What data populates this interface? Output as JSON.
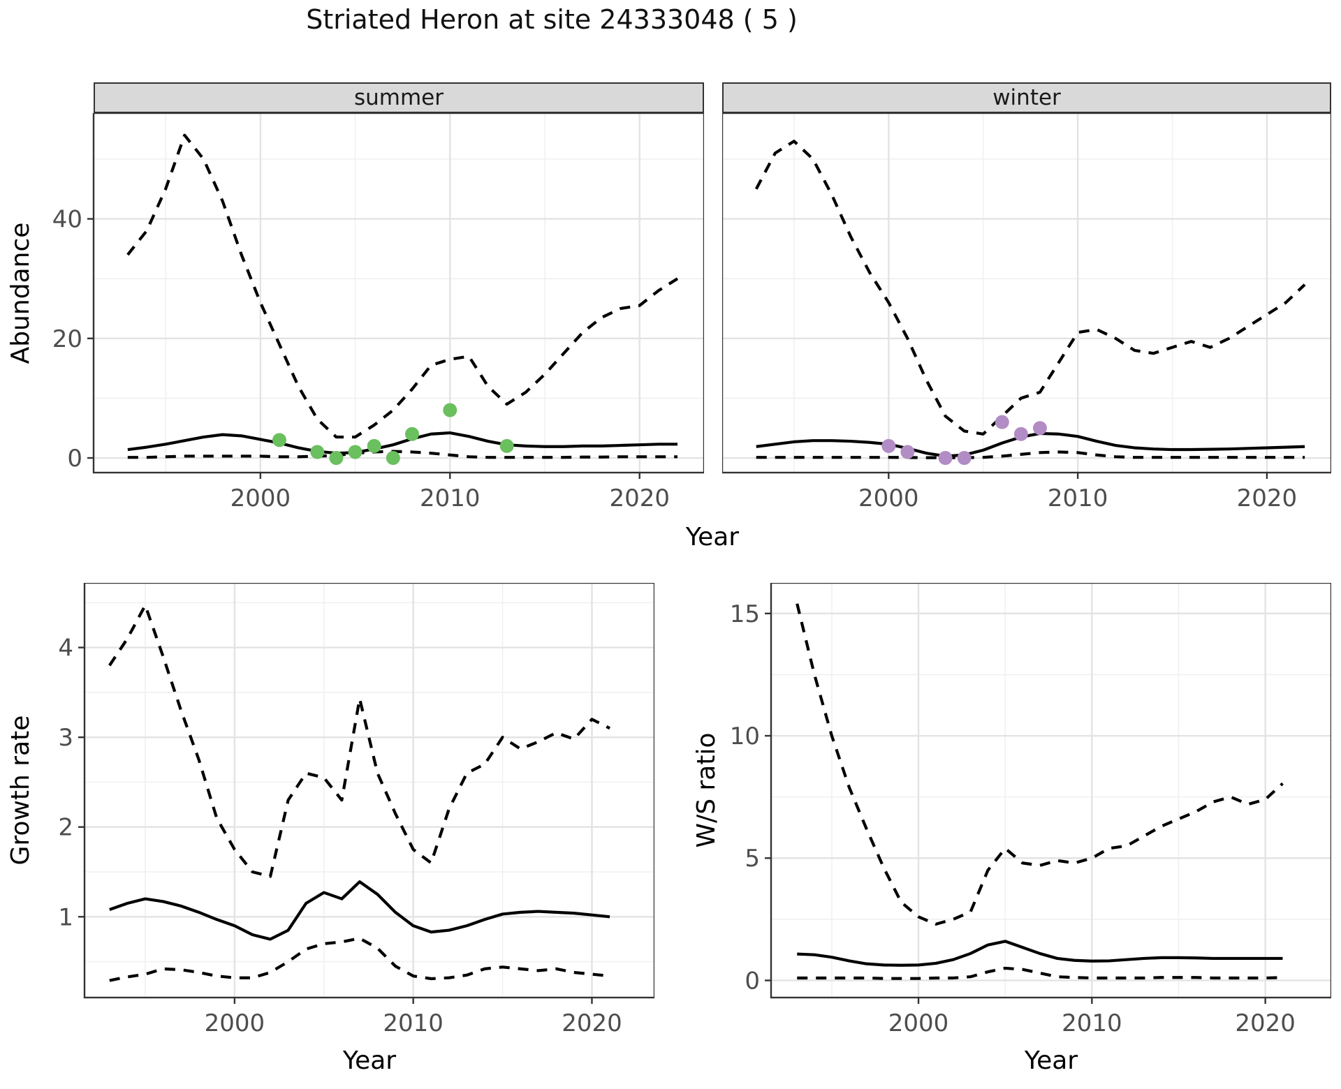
{
  "title": "Striated Heron at site 24333048 ( 5 )",
  "facets": [
    "summer",
    "winter"
  ],
  "axis_titles": {
    "x": "Year",
    "y_abundance": "Abundance",
    "y_growth": "Growth rate",
    "y_ws": "W/S ratio"
  },
  "colors": {
    "summer_points": "#6abf5f",
    "winter_points": "#b28cc4",
    "line": "#000000",
    "grid_major": "#e3e3e3",
    "grid_minor": "#f0f0f0",
    "strip_bg": "#d9d9d9",
    "panel_border": "#333333",
    "tick_text": "#4d4d4d"
  },
  "chart_data": [
    {
      "name": "abundance-summer",
      "type": "line",
      "facet": "summer",
      "xlabel": "Year",
      "ylabel": "Abundance",
      "xlim": [
        1991.2,
        2023.4
      ],
      "ylim": [
        -2.45,
        57.7
      ],
      "xticks": [
        2000,
        2010,
        2020
      ],
      "xminor": [
        1995,
        2005,
        2015
      ],
      "yticks": [
        0,
        20,
        40
      ],
      "yminor": [
        10,
        30,
        50
      ],
      "x": [
        1993,
        1994,
        1995,
        1996,
        1997,
        1998,
        1999,
        2000,
        2001,
        2002,
        2003,
        2004,
        2005,
        2006,
        2007,
        2008,
        2009,
        2010,
        2011,
        2012,
        2013,
        2014,
        2015,
        2016,
        2017,
        2018,
        2019,
        2020,
        2021,
        2022
      ],
      "series": [
        {
          "name": "upper_ci",
          "style": "dashed",
          "values": [
            34,
            38,
            45,
            54,
            50,
            43,
            34,
            26,
            19,
            12,
            6.5,
            3.5,
            3.5,
            5.5,
            8,
            11.5,
            15.5,
            16.5,
            17,
            12,
            9,
            11,
            14,
            17.5,
            21,
            23.5,
            25,
            25.5,
            28,
            30
          ]
        },
        {
          "name": "lower_ci",
          "style": "dashed",
          "values": [
            0.1,
            0.1,
            0.2,
            0.3,
            0.3,
            0.3,
            0.3,
            0.3,
            0.2,
            0.2,
            0.3,
            0.4,
            0.8,
            1.0,
            1.1,
            1.0,
            0.8,
            0.5,
            0.2,
            0.1,
            0.1,
            0.1,
            0.1,
            0.1,
            0.15,
            0.15,
            0.2,
            0.2,
            0.2,
            0.2
          ]
        },
        {
          "name": "fit",
          "style": "solid",
          "values": [
            1.4,
            1.8,
            2.3,
            2.9,
            3.5,
            3.9,
            3.7,
            3.1,
            2.5,
            1.7,
            1.1,
            0.8,
            0.9,
            1.5,
            2.2,
            3.2,
            4.0,
            4.2,
            3.6,
            2.8,
            2.2,
            2.0,
            1.9,
            1.9,
            2.0,
            2.0,
            2.1,
            2.2,
            2.3,
            2.3
          ]
        }
      ],
      "points": {
        "name": "observed-counts",
        "color_key": "summer_points",
        "data": [
          [
            2001,
            3
          ],
          [
            2003,
            1
          ],
          [
            2004,
            0
          ],
          [
            2005,
            1
          ],
          [
            2006,
            2
          ],
          [
            2007,
            0
          ],
          [
            2008,
            4
          ],
          [
            2010,
            8
          ],
          [
            2013,
            2
          ]
        ]
      }
    },
    {
      "name": "abundance-winter",
      "type": "line",
      "facet": "winter",
      "xlabel": "Year",
      "ylabel": "Abundance",
      "xlim": [
        1991.2,
        2023.4
      ],
      "ylim": [
        -2.45,
        57.7
      ],
      "xticks": [
        2000,
        2010,
        2020
      ],
      "xminor": [
        1995,
        2005,
        2015
      ],
      "yticks": [
        0,
        20,
        40
      ],
      "yminor": [
        10,
        30,
        50
      ],
      "x": [
        1993,
        1994,
        1995,
        1996,
        1997,
        1998,
        1999,
        2000,
        2001,
        2002,
        2003,
        2004,
        2005,
        2006,
        2007,
        2008,
        2009,
        2010,
        2011,
        2012,
        2013,
        2014,
        2015,
        2016,
        2017,
        2018,
        2019,
        2020,
        2021,
        2022
      ],
      "series": [
        {
          "name": "upper_ci",
          "style": "dashed",
          "values": [
            45,
            51,
            53,
            50,
            44,
            37,
            31,
            26,
            20,
            13,
            7,
            4.5,
            4,
            7,
            10,
            11,
            16,
            21,
            21.5,
            20,
            18,
            17.5,
            18.5,
            19.5,
            18.5,
            20,
            22,
            24,
            26,
            29
          ]
        },
        {
          "name": "lower_ci",
          "style": "dashed",
          "values": [
            0.1,
            0.1,
            0.1,
            0.1,
            0.1,
            0.1,
            0.1,
            0.1,
            0.08,
            0.05,
            0.05,
            0.05,
            0.1,
            0.3,
            0.6,
            0.9,
            1.0,
            0.9,
            0.5,
            0.2,
            0.1,
            0.1,
            0.1,
            0.1,
            0.1,
            0.1,
            0.1,
            0.1,
            0.1,
            0.1
          ]
        },
        {
          "name": "fit",
          "style": "solid",
          "values": [
            1.9,
            2.3,
            2.7,
            2.9,
            2.9,
            2.8,
            2.6,
            2.3,
            1.6,
            0.8,
            0.3,
            0.5,
            1.3,
            2.5,
            3.5,
            4.1,
            4.0,
            3.6,
            2.8,
            2.1,
            1.7,
            1.5,
            1.4,
            1.4,
            1.45,
            1.5,
            1.6,
            1.7,
            1.8,
            1.9
          ]
        }
      ],
      "points": {
        "name": "observed-counts",
        "color_key": "winter_points",
        "data": [
          [
            2000,
            2
          ],
          [
            2001,
            1
          ],
          [
            2003,
            0
          ],
          [
            2004,
            0
          ],
          [
            2006,
            6
          ],
          [
            2007,
            4
          ],
          [
            2008,
            5
          ]
        ]
      }
    },
    {
      "name": "growth-rate",
      "type": "line",
      "xlabel": "Year",
      "ylabel": "Growth rate",
      "xlim": [
        1991.6,
        2023.5
      ],
      "ylim": [
        0.1,
        4.72
      ],
      "xticks": [
        2000,
        2010,
        2020
      ],
      "xminor": [
        1995,
        2005,
        2015
      ],
      "yticks": [
        1,
        2,
        3,
        4
      ],
      "yminor": [
        0.5,
        1.5,
        2.5,
        3.5,
        4.5
      ],
      "x": [
        1993,
        1994,
        1995,
        1996,
        1997,
        1998,
        1999,
        2000,
        2001,
        2002,
        2003,
        2004,
        2005,
        2006,
        2007,
        2008,
        2009,
        2010,
        2011,
        2012,
        2013,
        2014,
        2015,
        2016,
        2017,
        2018,
        2019,
        2020,
        2021
      ],
      "series": [
        {
          "name": "upper_ci",
          "style": "dashed",
          "values": [
            3.8,
            4.1,
            4.47,
            3.9,
            3.3,
            2.75,
            2.1,
            1.75,
            1.5,
            1.45,
            2.3,
            2.6,
            2.55,
            2.3,
            3.43,
            2.6,
            2.15,
            1.75,
            1.6,
            2.2,
            2.6,
            2.7,
            3.0,
            2.87,
            2.95,
            3.05,
            2.98,
            3.2,
            3.1
          ]
        },
        {
          "name": "lower_ci",
          "style": "dashed",
          "values": [
            0.29,
            0.33,
            0.36,
            0.42,
            0.41,
            0.38,
            0.34,
            0.32,
            0.32,
            0.38,
            0.5,
            0.64,
            0.7,
            0.72,
            0.76,
            0.65,
            0.45,
            0.34,
            0.31,
            0.32,
            0.35,
            0.42,
            0.44,
            0.42,
            0.4,
            0.42,
            0.38,
            0.36,
            0.34
          ]
        },
        {
          "name": "fit",
          "style": "solid",
          "values": [
            1.08,
            1.15,
            1.2,
            1.17,
            1.12,
            1.05,
            0.97,
            0.9,
            0.8,
            0.75,
            0.85,
            1.15,
            1.27,
            1.2,
            1.39,
            1.25,
            1.05,
            0.9,
            0.83,
            0.85,
            0.9,
            0.97,
            1.03,
            1.05,
            1.06,
            1.05,
            1.04,
            1.02,
            1.0
          ]
        }
      ]
    },
    {
      "name": "ws-ratio",
      "type": "line",
      "xlabel": "Year",
      "ylabel": "W/S ratio",
      "xlim": [
        1991.5,
        2023.8
      ],
      "ylim": [
        -0.7,
        16.25
      ],
      "xticks": [
        2000,
        2010,
        2020
      ],
      "xminor": [
        1995,
        2005,
        2015
      ],
      "yticks": [
        0,
        5,
        10,
        15
      ],
      "yminor": [
        2.5,
        7.5,
        12.5
      ],
      "x": [
        1993,
        1994,
        1995,
        1996,
        1997,
        1998,
        1999,
        2000,
        2001,
        2002,
        2003,
        2004,
        2005,
        2006,
        2007,
        2008,
        2009,
        2010,
        2011,
        2012,
        2013,
        2014,
        2015,
        2016,
        2017,
        2018,
        2019,
        2020,
        2021
      ],
      "series": [
        {
          "name": "upper_ci",
          "style": "dashed",
          "values": [
            15.4,
            12.5,
            10.0,
            7.9,
            6.2,
            4.6,
            3.2,
            2.6,
            2.3,
            2.5,
            2.8,
            4.5,
            5.4,
            4.8,
            4.7,
            4.9,
            4.8,
            5.0,
            5.4,
            5.5,
            5.9,
            6.3,
            6.6,
            6.9,
            7.3,
            7.5,
            7.2,
            7.4,
            8.05
          ]
        },
        {
          "name": "lower_ci",
          "style": "dashed",
          "values": [
            0.1,
            0.1,
            0.1,
            0.1,
            0.1,
            0.08,
            0.08,
            0.08,
            0.1,
            0.1,
            0.15,
            0.35,
            0.5,
            0.45,
            0.3,
            0.15,
            0.12,
            0.1,
            0.1,
            0.1,
            0.1,
            0.12,
            0.12,
            0.12,
            0.1,
            0.1,
            0.1,
            0.1,
            0.12
          ]
        },
        {
          "name": "fit",
          "style": "solid",
          "values": [
            1.08,
            1.05,
            0.95,
            0.8,
            0.68,
            0.63,
            0.62,
            0.63,
            0.7,
            0.85,
            1.1,
            1.45,
            1.6,
            1.35,
            1.1,
            0.9,
            0.82,
            0.79,
            0.8,
            0.85,
            0.9,
            0.93,
            0.93,
            0.92,
            0.9,
            0.9,
            0.9,
            0.9,
            0.9
          ]
        }
      ]
    }
  ]
}
